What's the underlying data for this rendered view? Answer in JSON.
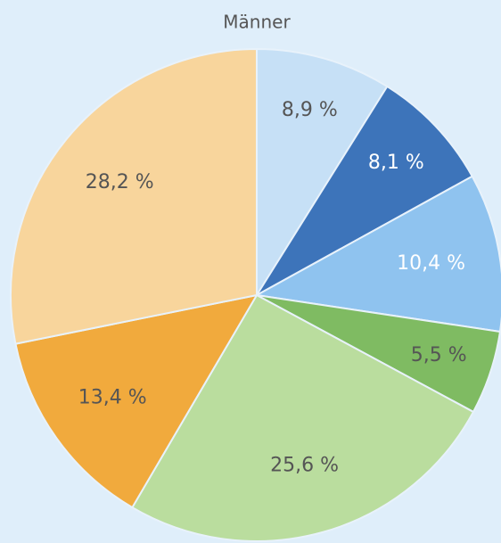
{
  "chart_data": {
    "type": "pie",
    "title": "Männer",
    "values": [
      8.9,
      8.1,
      10.4,
      5.5,
      25.6,
      13.4,
      28.2
    ],
    "value_labels": [
      "8,9 %",
      "8,1 %",
      "10,4 %",
      "5,5 %",
      "25,6 %",
      "13,4 %",
      "28,2 %"
    ],
    "colors": [
      "#c6e0f6",
      "#3d74ba",
      "#8fc3ef",
      "#7fbb62",
      "#badd9e",
      "#f1aa3d",
      "#f8d59c"
    ],
    "label_colors": [
      "#555555",
      "#ffffff",
      "#ffffff",
      "#555555",
      "#555555",
      "#555555",
      "#555555"
    ]
  }
}
